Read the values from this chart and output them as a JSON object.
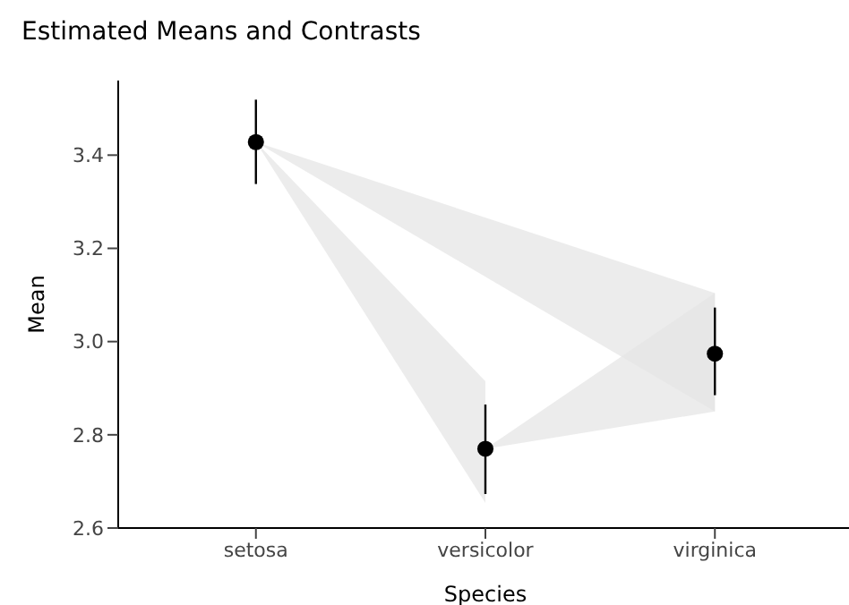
{
  "chart_data": {
    "type": "scatter",
    "title": "Estimated Means and Contrasts",
    "xlabel": "Species",
    "ylabel": "Mean",
    "categories": [
      "setosa",
      "versicolor",
      "virginica"
    ],
    "ylim": [
      2.6,
      3.56
    ],
    "yticks": [
      2.6,
      2.8,
      {
        "value": 3,
        "label": "3.0"
      },
      3.2,
      3.4
    ],
    "marker": "circle",
    "series": [
      {
        "type": "area",
        "color": "#e6e6e6",
        "x": [
          "setosa",
          "versicolor"
        ],
        "values": [
          null,
          null
        ],
        "lower": [
          3.428,
          2.654
        ],
        "upper": [
          3.428,
          2.915
        ]
      },
      {
        "type": "area",
        "color": "#e6e6e6",
        "x": [
          "setosa",
          "virginica"
        ],
        "values": [
          null,
          null
        ],
        "lower": [
          3.428,
          2.85
        ],
        "upper": [
          3.428,
          3.104
        ]
      },
      {
        "type": "area",
        "color": "#e6e6e6",
        "x": [
          "versicolor",
          "virginica"
        ],
        "values": [
          null,
          null
        ],
        "lower": [
          2.77,
          2.85
        ],
        "upper": [
          2.77,
          3.104
        ]
      },
      {
        "color": "#000000",
        "values": [
          3.428,
          2.77,
          2.974
        ],
        "errors": [
          [
            3.338,
            3.519
          ],
          [
            2.673,
            2.865
          ],
          [
            2.885,
            3.073
          ]
        ]
      }
    ]
  }
}
